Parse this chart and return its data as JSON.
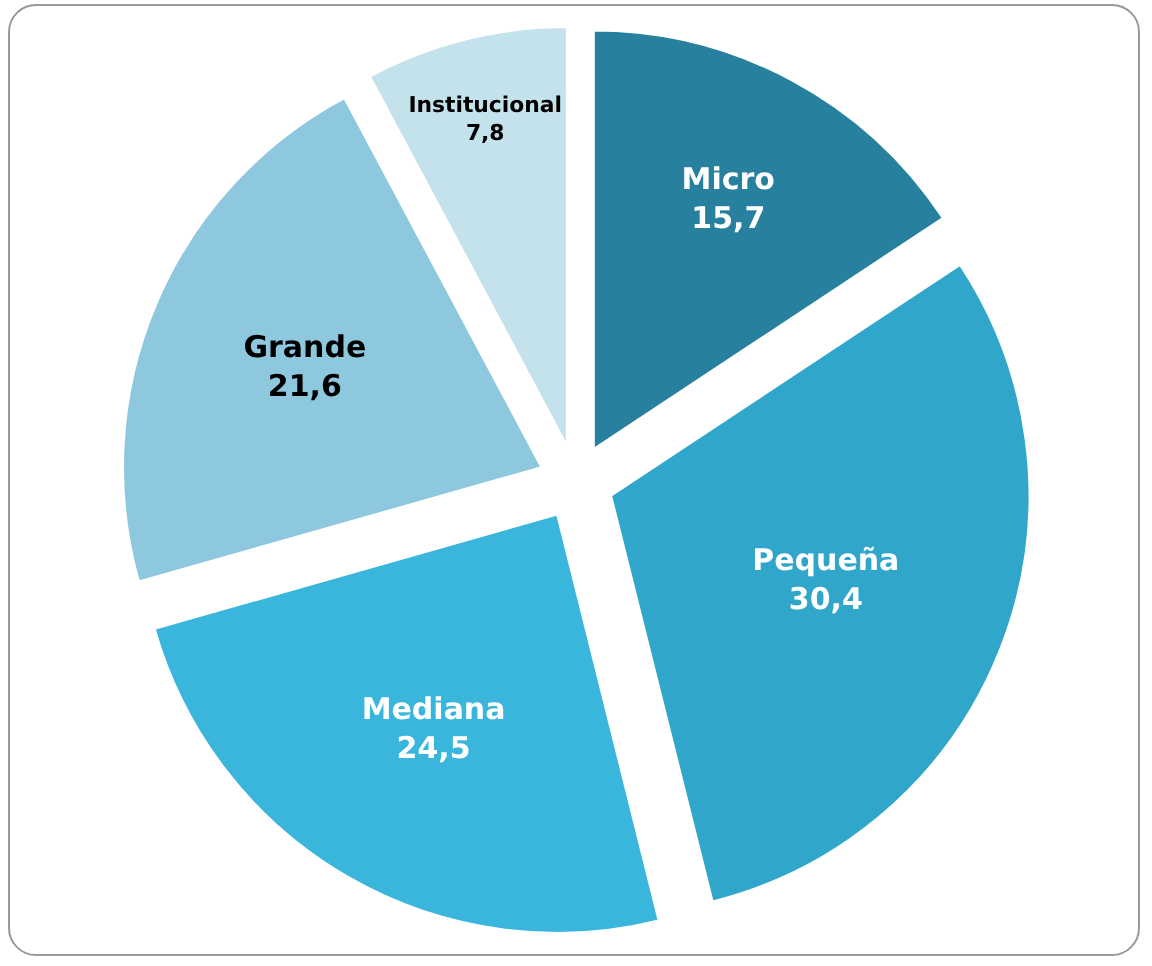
{
  "chart_data": {
    "type": "pie",
    "categories": [
      "Micro",
      "Pequeña",
      "Mediana",
      "Grande",
      "Institucional"
    ],
    "values": [
      15.7,
      30.4,
      24.5,
      21.6,
      7.8
    ],
    "value_labels": [
      "15,7",
      "30,4",
      "24,5",
      "21,6",
      "7,8"
    ],
    "colors": [
      "#27819e",
      "#31a6cb",
      "#3ab6dc",
      "#8ec8df",
      "#c4e2ec"
    ],
    "legend": false
  }
}
